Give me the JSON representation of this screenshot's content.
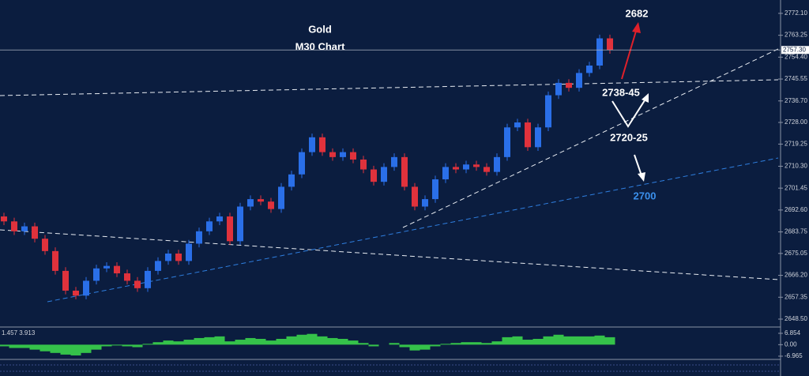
{
  "chart_data": [
    {
      "type": "candlestick",
      "title": "Gold",
      "subtitle": "M30  Chart",
      "annotations": [
        "2682",
        "2738-45",
        "2720-25",
        "2700"
      ],
      "up_color": "#2a6fe8",
      "down_color": "#e0323c",
      "open": [
        2690,
        2688,
        2684,
        2686,
        2681,
        2676,
        2668,
        2660,
        2658,
        2664,
        2669,
        2670,
        2667,
        2664,
        2661,
        2668,
        2672,
        2675,
        2672,
        2679,
        2684,
        2688,
        2690,
        2680,
        2694,
        2697,
        2696,
        2693,
        2702,
        2707,
        2716,
        2722,
        2716,
        2714,
        2716,
        2713,
        2709,
        2704,
        2710,
        2714,
        2702,
        2694,
        2697,
        2705,
        2710,
        2709,
        2711,
        2710,
        2708,
        2714,
        2726,
        2728,
        2718,
        2726,
        2739,
        2744,
        2742,
        2748,
        2751,
        2762
      ],
      "high": [
        2691.5,
        2689.5,
        2687.5,
        2687.5,
        2682.5,
        2677.5,
        2669.5,
        2661.5,
        2665.5,
        2670.5,
        2671.5,
        2671.5,
        2668.5,
        2665.5,
        2669.5,
        2673.5,
        2676.5,
        2676.5,
        2680.5,
        2685.5,
        2689.5,
        2691.5,
        2691.5,
        2695.5,
        2698.5,
        2698.5,
        2697.5,
        2703.5,
        2708.5,
        2717.5,
        2723.5,
        2723.5,
        2717.5,
        2717.5,
        2717.5,
        2714.5,
        2710.5,
        2711.5,
        2715.5,
        2715.5,
        2703.5,
        2698.5,
        2706.5,
        2711.5,
        2711.5,
        2712.5,
        2712.5,
        2711.5,
        2715.5,
        2727.5,
        2729.5,
        2729.5,
        2727.5,
        2740.5,
        2745.5,
        2745.5,
        2749.5,
        2752.5,
        2763.5,
        2763.5
      ],
      "low": [
        2686.5,
        2682.5,
        2682.5,
        2679.5,
        2674.5,
        2666.5,
        2658.5,
        2656.5,
        2656.5,
        2662.5,
        2667.5,
        2665.5,
        2662.5,
        2659.5,
        2659.5,
        2666.5,
        2670.5,
        2670.5,
        2670.5,
        2677.5,
        2682.5,
        2686.5,
        2678.5,
        2678.5,
        2692.5,
        2694.5,
        2691.5,
        2691.5,
        2700.5,
        2705.5,
        2714.5,
        2714.5,
        2712.5,
        2712.5,
        2711.5,
        2707.5,
        2702.5,
        2702.5,
        2708.5,
        2700.5,
        2692.5,
        2692.5,
        2695.5,
        2703.5,
        2707.5,
        2707.5,
        2708.5,
        2706.5,
        2706.5,
        2712.5,
        2724.5,
        2716.5,
        2716.5,
        2724.5,
        2737.5,
        2740.5,
        2740.5,
        2746.5,
        2749.5,
        2755.8
      ],
      "close": [
        2688,
        2684,
        2686,
        2681,
        2676,
        2668,
        2660,
        2658,
        2664,
        2669,
        2670,
        2667,
        2664,
        2661,
        2668,
        2672,
        2675,
        2672,
        2679,
        2684,
        2688,
        2690,
        2680,
        2694,
        2697,
        2696,
        2693,
        2702,
        2707,
        2716,
        2722,
        2716,
        2714,
        2716,
        2713,
        2709,
        2704,
        2710,
        2714,
        2702,
        2694,
        2697,
        2705,
        2710,
        2709,
        2711,
        2710,
        2708,
        2714,
        2726,
        2728,
        2718,
        2726,
        2739,
        2744,
        2742,
        2748,
        2751,
        2762,
        2757.3
      ],
      "last_price": {
        "value": 2757.3,
        "label": "2757.30"
      },
      "ylim": [
        2645.3,
        2777.5
      ],
      "yticks": [
        {
          "value": 2772.1,
          "label": "2772.10"
        },
        {
          "value": 2763.25,
          "label": "2763.25"
        },
        {
          "value": 2754.4,
          "label": "2754.40"
        },
        {
          "value": 2745.55,
          "label": "2745.55"
        },
        {
          "value": 2736.7,
          "label": "2736.70"
        },
        {
          "value": 2728,
          "label": "2728.00"
        },
        {
          "value": 2719.25,
          "label": "2719.25"
        },
        {
          "value": 2710.3,
          "label": "2710.30"
        },
        {
          "value": 2701.45,
          "label": "2701.45"
        },
        {
          "value": 2692.6,
          "label": "2692.60"
        },
        {
          "value": 2683.75,
          "label": "2683.75"
        },
        {
          "value": 2675.05,
          "label": "2675.05"
        },
        {
          "value": 2666.2,
          "label": "2666.20"
        },
        {
          "value": 2657.35,
          "label": "2657.35"
        },
        {
          "value": 2648.5,
          "label": "2648.50"
        }
      ]
    },
    {
      "type": "bar",
      "legend": "1.457 3.913",
      "color": "#35c24a",
      "values": [
        -1,
        -2,
        -2,
        -3,
        -4,
        -5,
        -6,
        -6.5,
        -5,
        -3,
        -1,
        -0.5,
        -1,
        -1.5,
        0.5,
        1.5,
        2.5,
        2,
        3,
        4,
        4.5,
        5,
        2,
        3,
        4,
        3.5,
        2.5,
        3.5,
        5,
        6,
        6.5,
        5,
        4,
        3.5,
        2.5,
        1,
        -1,
        0,
        1,
        -1.5,
        -3.5,
        -3,
        -1,
        0.5,
        1,
        1.5,
        1.5,
        1,
        2,
        4.5,
        5,
        3,
        3.5,
        5,
        6,
        5,
        5,
        5,
        5.5,
        4.5
      ],
      "ylim": [
        -8.9,
        9.7
      ],
      "yticks": [
        6.854,
        {
          "value": 0,
          "label": "0.00"
        },
        -6.965
      ]
    }
  ]
}
